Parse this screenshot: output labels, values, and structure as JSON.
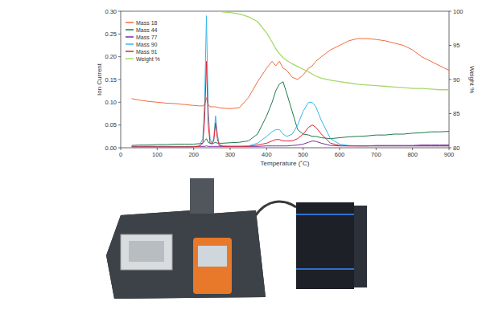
{
  "chart_data": {
    "type": "line",
    "x_label": "Temperature (˚C)",
    "y_label": "Ion Current",
    "y2_label": "Weight %",
    "xlim": [
      0,
      900
    ],
    "xticks": [
      0,
      100,
      200,
      300,
      400,
      500,
      600,
      700,
      800,
      900
    ],
    "ylim": [
      0,
      0.3
    ],
    "yticks": [
      {
        "value": 0,
        "label": "0.00"
      },
      0.05,
      {
        "value": 0.1,
        "label": "0.10"
      },
      0.15,
      {
        "value": 0.2,
        "label": "0.20"
      },
      0.25,
      {
        "value": 0.3,
        "label": "0.30"
      }
    ],
    "y2lim": [
      80,
      100
    ],
    "y2ticks": [
      80,
      85,
      90,
      95,
      100
    ],
    "grid": false,
    "legend": "upper left",
    "x": [
      30,
      50,
      75,
      100,
      125,
      150,
      175,
      200,
      215,
      225,
      230,
      235,
      240,
      245,
      250,
      255,
      260,
      265,
      270,
      280,
      300,
      325,
      350,
      375,
      400,
      415,
      425,
      435,
      445,
      455,
      470,
      485,
      500,
      515,
      525,
      535,
      550,
      575,
      600,
      625,
      650,
      675,
      700,
      725,
      750,
      775,
      800,
      825,
      850,
      875,
      900
    ],
    "series": [
      {
        "name": "Mass 18",
        "color": "#f26b3a",
        "values": [
          0.108,
          0.105,
          0.102,
          0.1,
          0.098,
          0.097,
          0.095,
          0.093,
          0.092,
          0.092,
          0.095,
          0.11,
          0.095,
          0.09,
          0.09,
          0.09,
          0.09,
          0.089,
          0.088,
          0.087,
          0.086,
          0.088,
          0.11,
          0.145,
          0.175,
          0.19,
          0.18,
          0.19,
          0.175,
          0.17,
          0.155,
          0.15,
          0.16,
          0.175,
          0.18,
          0.19,
          0.2,
          0.215,
          0.225,
          0.235,
          0.24,
          0.24,
          0.238,
          0.235,
          0.23,
          0.225,
          0.215,
          0.2,
          0.19,
          0.18,
          0.17
        ]
      },
      {
        "name": "Mass 44",
        "color": "#1e7a4a",
        "values": [
          0.005,
          0.006,
          0.006,
          0.007,
          0.007,
          0.008,
          0.008,
          0.008,
          0.009,
          0.01,
          0.015,
          0.02,
          0.012,
          0.01,
          0.01,
          0.01,
          0.012,
          0.01,
          0.01,
          0.01,
          0.011,
          0.012,
          0.015,
          0.03,
          0.07,
          0.1,
          0.125,
          0.14,
          0.145,
          0.12,
          0.08,
          0.04,
          0.03,
          0.028,
          0.025,
          0.025,
          0.022,
          0.02,
          0.022,
          0.024,
          0.025,
          0.026,
          0.028,
          0.028,
          0.03,
          0.03,
          0.032,
          0.033,
          0.035,
          0.035,
          0.036
        ]
      },
      {
        "name": "Mass 77",
        "color": "#7a2aa0",
        "values": [
          0.003,
          0.003,
          0.003,
          0.003,
          0.003,
          0.003,
          0.003,
          0.003,
          0.003,
          0.003,
          0.003,
          0.004,
          0.003,
          0.003,
          0.003,
          0.003,
          0.003,
          0.003,
          0.003,
          0.003,
          0.003,
          0.003,
          0.003,
          0.003,
          0.004,
          0.004,
          0.004,
          0.004,
          0.004,
          0.004,
          0.005,
          0.006,
          0.008,
          0.012,
          0.015,
          0.014,
          0.01,
          0.005,
          0.004,
          0.004,
          0.004,
          0.004,
          0.005,
          0.005,
          0.005,
          0.005,
          0.005,
          0.006,
          0.006,
          0.006,
          0.006
        ]
      },
      {
        "name": "Mass 90",
        "color": "#35b8e8",
        "values": [
          0.002,
          0.002,
          0.002,
          0.002,
          0.002,
          0.002,
          0.002,
          0.002,
          0.004,
          0.02,
          0.1,
          0.29,
          0.08,
          0.02,
          0.01,
          0.02,
          0.07,
          0.03,
          0.008,
          0.004,
          0.003,
          0.003,
          0.004,
          0.01,
          0.025,
          0.035,
          0.04,
          0.04,
          0.03,
          0.025,
          0.03,
          0.05,
          0.08,
          0.1,
          0.1,
          0.09,
          0.06,
          0.02,
          0.008,
          0.005,
          0.004,
          0.004,
          0.004,
          0.004,
          0.004,
          0.004,
          0.004,
          0.004,
          0.004,
          0.004,
          0.004
        ]
      },
      {
        "name": "Mass 91",
        "color": "#e02030",
        "values": [
          0.002,
          0.002,
          0.002,
          0.002,
          0.002,
          0.002,
          0.002,
          0.002,
          0.003,
          0.01,
          0.06,
          0.19,
          0.05,
          0.01,
          0.008,
          0.015,
          0.055,
          0.02,
          0.005,
          0.003,
          0.003,
          0.003,
          0.003,
          0.006,
          0.01,
          0.015,
          0.018,
          0.018,
          0.015,
          0.015,
          0.015,
          0.02,
          0.03,
          0.045,
          0.05,
          0.045,
          0.03,
          0.01,
          0.005,
          0.004,
          0.004,
          0.004,
          0.004,
          0.004,
          0.004,
          0.004,
          0.004,
          0.004,
          0.004,
          0.004,
          0.004
        ]
      },
      {
        "name": "Weight %",
        "color": "#a8d86a",
        "axis": "y2",
        "values": [
          100,
          100,
          100,
          100,
          100,
          100,
          100,
          100,
          100,
          100,
          100,
          100,
          100,
          100,
          100,
          100,
          100,
          100,
          100,
          99.9,
          99.8,
          99.6,
          99.2,
          98.5,
          96.8,
          95.5,
          94.5,
          93.8,
          93.2,
          92.8,
          92.3,
          91.9,
          91.5,
          91.1,
          90.8,
          90.5,
          90.2,
          89.9,
          89.7,
          89.5,
          89.3,
          89.2,
          89.1,
          89,
          88.9,
          88.8,
          88.7,
          88.7,
          88.6,
          88.5,
          88.5
        ]
      }
    ]
  }
}
